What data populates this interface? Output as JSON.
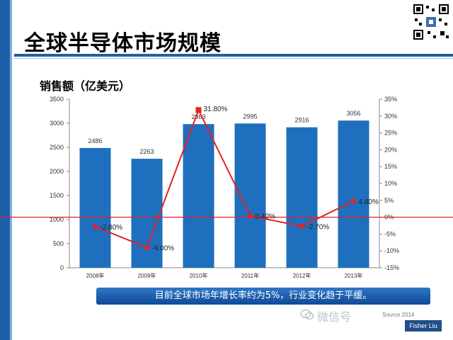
{
  "slide": {
    "title": "全球半导体市场规模",
    "subtitle": "销售额（亿美元）",
    "banner_text": "目前全球市场年增长率约为5%，行业变化趋于平缓。",
    "footer_credit": "Source 2014",
    "watermark_text": "微信号",
    "name_badge": "Fisher Liu"
  },
  "colors": {
    "accent": "#1f5fa8",
    "bar": "#1f6fbf",
    "line": "#e52222",
    "banner": "#1a5aa6"
  },
  "chart_data": {
    "type": "bar",
    "categories": [
      "2008年",
      "2009年",
      "2010年",
      "2011年",
      "2012年",
      "2013年"
    ],
    "series": [
      {
        "values": [
          2486,
          2263,
          2983,
          2995,
          2916,
          3056
        ]
      }
    ],
    "line_series": {
      "values": [
        -2.8,
        -9.0,
        31.8,
        0.4,
        -2.7,
        4.8
      ],
      "labels": [
        "-2.80%",
        "-9.00%",
        "31.80%",
        "0.40%",
        "-2.70%",
        "4.80%"
      ]
    },
    "bar_labels": [
      "2486",
      "2263",
      "2983",
      "2995",
      "2916",
      "3056"
    ],
    "ylim": [
      0,
      3500
    ],
    "y_ticks": [
      0,
      500,
      1000,
      1500,
      2000,
      2500,
      3000,
      3500
    ],
    "y2lim": [
      -15,
      35
    ],
    "y2_ticks": [
      "-15%",
      "-10%",
      "-5%",
      "0%",
      "5%",
      "10%",
      "15%",
      "20%",
      "25%",
      "30%",
      "35%"
    ],
    "grid": false
  }
}
